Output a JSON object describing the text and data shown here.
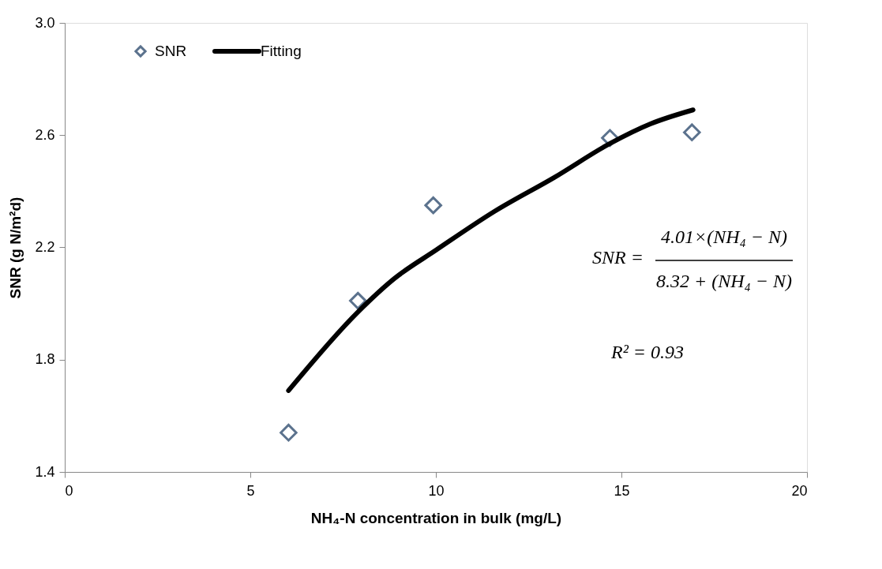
{
  "chart_data": {
    "type": "scatter",
    "xlabel": "NH₄-N concentration in bulk (mg/L)",
    "ylabel": "SNR (g N/m²d)",
    "xlim": [
      0,
      20
    ],
    "xticks": [
      0,
      5,
      10,
      15,
      20
    ],
    "ylim": [
      1.4,
      3.0
    ],
    "yticks": [
      {
        "value": 1.4,
        "label": "1.4"
      },
      {
        "value": 1.8,
        "label": "1.8"
      },
      {
        "value": 2.2,
        "label": "2.2"
      },
      {
        "value": 2.6,
        "label": "2.6"
      },
      {
        "value": 3.0,
        "label": "3.0"
      }
    ],
    "grid": false,
    "legend": "top left",
    "series": [
      {
        "name": "SNR",
        "marker": "diamond",
        "color": "#17375e",
        "x": [
          6.03,
          7.9,
          9.93,
          14.69,
          16.9
        ],
        "values": [
          1.54,
          2.01,
          2.35,
          2.59,
          2.61
        ]
      },
      {
        "name": "Fitting",
        "type": "line",
        "marker": "none",
        "color": "#000000",
        "line_style": "solid",
        "x": [
          6.03,
          7.9,
          8.89,
          10.0,
          11.6,
          13.2,
          14.69,
          15.78,
          16.93
        ],
        "values": [
          1.69,
          1.97,
          2.09,
          2.19,
          2.33,
          2.45,
          2.57,
          2.64,
          2.69
        ]
      }
    ],
    "annotations": [
      "SNR =",
      "4.01×(NH₄ − N)",
      "8.32 + (NH₄ − N)",
      "R² = 0.93"
    ]
  }
}
